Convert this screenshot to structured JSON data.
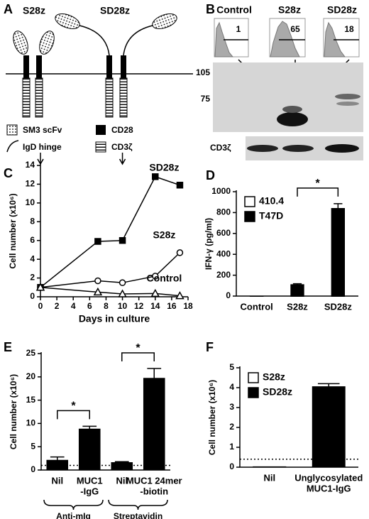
{
  "panels": {
    "A": {
      "label": "A",
      "receptors": [
        "S28z",
        "SD28z"
      ],
      "legend": [
        "SM3 scFv",
        "IgD hinge",
        "CD28",
        "CD3ζ"
      ]
    },
    "B": {
      "label": "B",
      "histograms": [
        {
          "title": "Control",
          "gate": "1"
        },
        {
          "title": "S28z",
          "gate": "65"
        },
        {
          "title": "SD28z",
          "gate": "18"
        }
      ],
      "markers": [
        "105",
        "75"
      ],
      "loading": "CD3ζ"
    }
  },
  "chart_data": [
    {
      "type": "line",
      "panel": "C",
      "ylabel": "Cell number (x10⁶)",
      "xlabel": "Days in culture",
      "x": [
        0,
        7,
        10,
        14,
        17
      ],
      "series": [
        {
          "name": "SD28z",
          "color": "#000000",
          "marker": "square",
          "values": [
            1,
            5.9,
            6,
            12.8,
            11.9
          ]
        },
        {
          "name": "S28z",
          "color": "#000000",
          "marker": "circle",
          "values": [
            1,
            1.7,
            1.5,
            2.2,
            4.7
          ]
        },
        {
          "name": "Control",
          "color": "#000000",
          "marker": "triangle",
          "values": [
            1,
            0.5,
            0.3,
            0.35,
            0.1
          ]
        }
      ],
      "arrows_x": [
        0,
        10
      ],
      "xlim": [
        0,
        18
      ],
      "xticks": [
        0,
        2,
        4,
        6,
        8,
        10,
        12,
        14,
        16,
        18
      ],
      "ylim": [
        0,
        14
      ],
      "yticks": [
        0,
        2,
        4,
        6,
        8,
        10,
        12,
        14
      ]
    },
    {
      "type": "bar",
      "panel": "D",
      "ylabel": "IFN-γ (pg/ml)",
      "categories": [
        [
          "Control"
        ],
        [
          "S28z"
        ],
        [
          "SD28z"
        ]
      ],
      "series": [
        {
          "name": "410.4",
          "color": "#ffffff",
          "values": [
            0,
            0,
            0
          ]
        },
        {
          "name": "T47D",
          "color": "#000000",
          "values": [
            0,
            110,
            840
          ],
          "errors": [
            0,
            8,
            45
          ]
        }
      ],
      "legend": "upper-left",
      "significance": [
        {
          "between": [
            1,
            2
          ],
          "label": "*"
        }
      ],
      "ylim": [
        0,
        1000
      ],
      "yticks": [
        0,
        200,
        400,
        600,
        800,
        1000
      ]
    },
    {
      "type": "bar",
      "panel": "E",
      "ylabel": "Cell number (x10⁶)",
      "categories": [
        [
          "Nil"
        ],
        [
          "MUC1",
          "-IgG"
        ],
        [
          "Nil"
        ],
        [
          "MUC1 24mer",
          "-biotin"
        ]
      ],
      "values": [
        2.1,
        8.8,
        1.6,
        19.7
      ],
      "errors": [
        0.7,
        0.6,
        0.2,
        2.1
      ],
      "color": "#000000",
      "reference_line": 1,
      "groups": [
        {
          "label": "Anti-mIg",
          "categories": [
            0,
            1
          ]
        },
        {
          "label": "Streptavidin",
          "categories": [
            2,
            3
          ]
        }
      ],
      "significance": [
        {
          "between": [
            0,
            1
          ],
          "label": "*"
        },
        {
          "between": [
            2,
            3
          ],
          "label": "*"
        }
      ],
      "ylim": [
        0,
        25
      ],
      "yticks": [
        0,
        5,
        10,
        15,
        20,
        25
      ]
    },
    {
      "type": "bar",
      "panel": "F",
      "ylabel": "Cell number (x10⁶)",
      "categories": [
        [
          "Nil"
        ],
        [
          "Unglycosylated",
          "MUC1-IgG"
        ]
      ],
      "series": [
        {
          "name": "S28z",
          "color": "#ffffff",
          "values": [
            0.02,
            0.02
          ]
        },
        {
          "name": "SD28z",
          "color": "#000000",
          "values": [
            0.02,
            4.05
          ],
          "errors": [
            0,
            0.15
          ]
        }
      ],
      "legend": "upper-left",
      "reference_line": 0.4,
      "ylim": [
        0,
        5
      ],
      "yticks": [
        0,
        1,
        2,
        3,
        4,
        5
      ]
    }
  ]
}
